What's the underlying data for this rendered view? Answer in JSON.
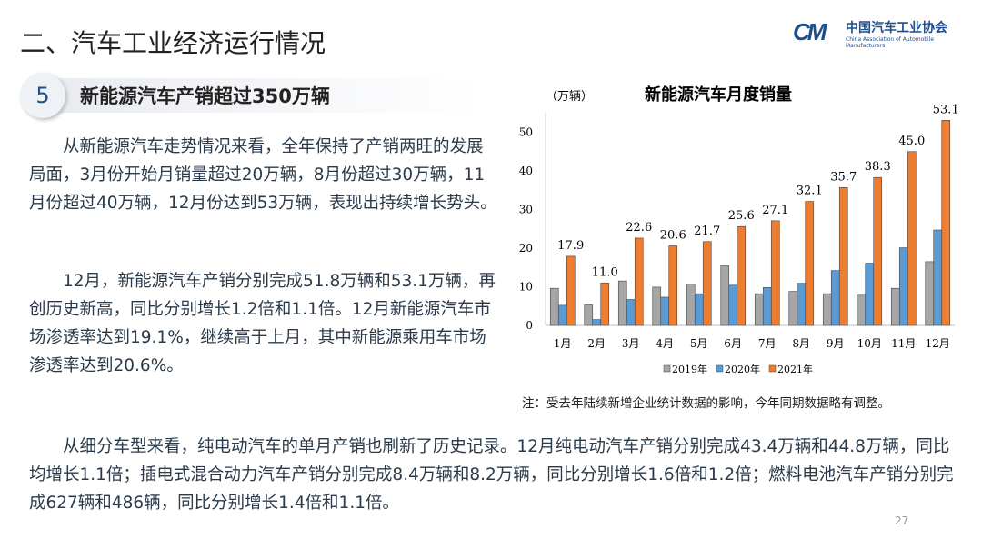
{
  "header": {
    "title": "二、汽车工业经济运行情况",
    "logo_cn": "中国汽车工业协会",
    "logo_en": "China Association of Automobile Manufacturers"
  },
  "section": {
    "number": "5",
    "title": "新能源汽车产销超过350万辆"
  },
  "paragraphs": [
    "从新能源汽车走势情况来看，全年保持了产销两旺的发展局面，3月份开始月销量超过20万辆，8月份超过30万辆，11月份超过40万辆，12月份达到53万辆，表现出持续增长势头。",
    "12月，新能源汽车产销分别完成51.8万辆和53.1万辆，再创历史新高，同比分别增长1.2倍和1.1倍。12月新能源汽车市场渗透率达到19.1%，继续高于上月，其中新能源乘用车市场渗透率达到20.6%。",
    "从细分车型来看，纯电动汽车的单月产销也刷新了历史记录。12月纯电动汽车产销分别完成43.4万辆和44.8万辆，同比均增长1.1倍；插电式混合动力汽车产销分别完成8.4万辆和8.2万辆，同比分别增长1.6倍和1.2倍；燃料电池汽车产销分别完成627辆和486辆，同比分别增长1.4倍和1.1倍。"
  ],
  "note": "注：受去年陆续新增企业统计数据的影响，今年同期数据略有调整。",
  "page_number": "27",
  "chart_data": {
    "type": "bar",
    "title": "新能源汽车月度销量",
    "ylabel": "（万辆）",
    "ylim": [
      0,
      55
    ],
    "yticks": [
      "0",
      "10",
      "20",
      "30",
      "40",
      "50"
    ],
    "categories": [
      "1月",
      "2月",
      "3月",
      "4月",
      "5月",
      "6月",
      "7月",
      "8月",
      "9月",
      "10月",
      "11月",
      "12月"
    ],
    "legend_position": "bottom",
    "grid": false,
    "series": [
      {
        "name": "2019年",
        "color": "#a6a6a6",
        "values": [
          9.6,
          5.3,
          11.5,
          9.9,
          10.7,
          15.5,
          8.2,
          8.8,
          8.2,
          7.8,
          9.6,
          16.5
        ]
      },
      {
        "name": "2020年",
        "color": "#5b9bd5",
        "values": [
          5.2,
          1.5,
          6.7,
          7.3,
          8.2,
          10.4,
          9.8,
          10.9,
          14.2,
          16.1,
          20.1,
          24.7
        ]
      },
      {
        "name": "2021年",
        "color": "#ed7d31",
        "values": [
          17.9,
          11.0,
          22.6,
          20.6,
          21.7,
          25.6,
          27.1,
          32.1,
          35.7,
          38.3,
          45.0,
          53.1
        ],
        "labels": [
          "17.9",
          "11.0",
          "22.6",
          "20.6",
          "21.7",
          "25.6",
          "27.1",
          "32.1",
          "35.7",
          "38.3",
          "45.0",
          "53.1"
        ]
      }
    ]
  }
}
